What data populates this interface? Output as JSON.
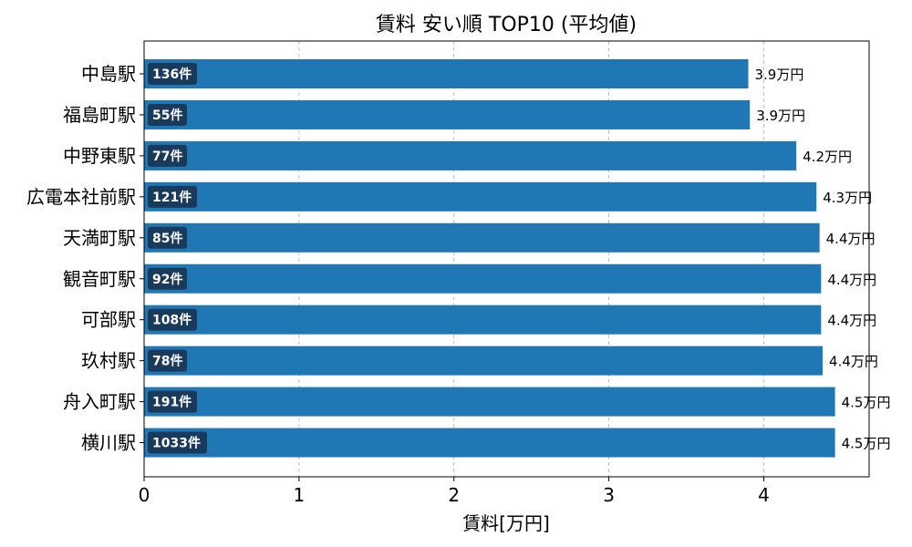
{
  "chart_data": {
    "type": "bar",
    "orientation": "horizontal",
    "title": "賃料 安い順 TOP10 (平均値)",
    "xlabel": "賃料[万円]",
    "ylabel": "",
    "xlim": [
      0,
      4.68
    ],
    "xticks": [
      0,
      1,
      2,
      3,
      4
    ],
    "grid": "x-dashed",
    "bar_color": "#1f77b4",
    "count_badge_color": "#1a3a5c",
    "categories": [
      "中島駅",
      "福島町駅",
      "中野東駅",
      "広電本社前駅",
      "天満町駅",
      "観音町駅",
      "可部駅",
      "玖村駅",
      "舟入町駅",
      "横川駅"
    ],
    "values": [
      3.9,
      3.91,
      4.21,
      4.34,
      4.36,
      4.37,
      4.37,
      4.38,
      4.46,
      4.46
    ],
    "value_labels": [
      "3.9万円",
      "3.9万円",
      "4.2万円",
      "4.3万円",
      "4.4万円",
      "4.4万円",
      "4.4万円",
      "4.4万円",
      "4.5万円",
      "4.5万円"
    ],
    "count_labels": [
      "136件",
      "55件",
      "77件",
      "121件",
      "85件",
      "92件",
      "108件",
      "78件",
      "191件",
      "1033件"
    ]
  }
}
